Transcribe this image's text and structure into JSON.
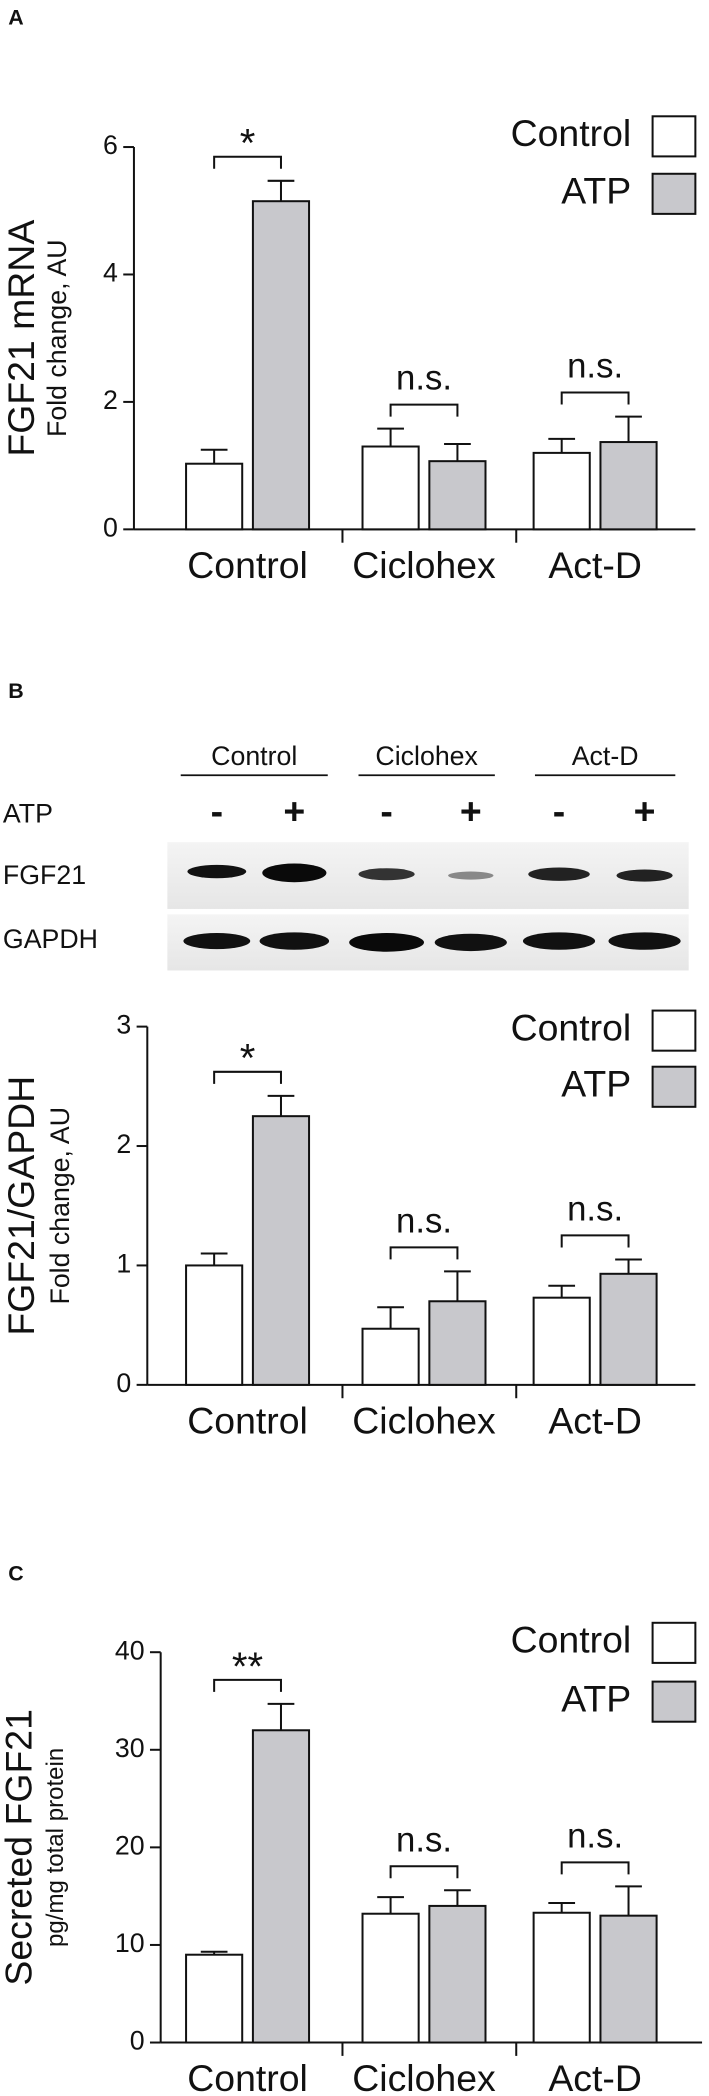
{
  "chart_data": [
    {
      "type": "bar",
      "panel_label": "A",
      "ylabel": "FGF21 mRNA",
      "ylabel_sub": "Fold change, AU",
      "categories": [
        "Control",
        "Ciclohex",
        "Act-D"
      ],
      "series": [
        {
          "name": "Control",
          "color": "#ffffff",
          "values": [
            1.03,
            1.3,
            1.2
          ],
          "errors": [
            0.22,
            0.28,
            0.22
          ]
        },
        {
          "name": "ATP",
          "color": "#c8c8cc",
          "values": [
            5.15,
            1.07,
            1.37
          ],
          "errors": [
            0.32,
            0.27,
            0.4
          ]
        }
      ],
      "annotations": [
        "*",
        "n.s.",
        "n.s."
      ],
      "ylim": [
        0,
        6
      ],
      "yticks": [
        0,
        2,
        4,
        6
      ]
    },
    {
      "type": "bar",
      "ylabel": "FGF21/GAPDH",
      "ylabel_sub": "Fold change, AU",
      "categories": [
        "Control",
        "Ciclohex",
        "Act-D"
      ],
      "series": [
        {
          "name": "Control",
          "color": "#ffffff",
          "values": [
            1.0,
            0.47,
            0.73
          ],
          "errors": [
            0.1,
            0.18,
            0.1
          ]
        },
        {
          "name": "ATP",
          "color": "#c8c8cc",
          "values": [
            2.25,
            0.7,
            0.93
          ],
          "errors": [
            0.17,
            0.25,
            0.12
          ]
        }
      ],
      "annotations": [
        "*",
        "n.s.",
        "n.s."
      ],
      "ylim": [
        0,
        3
      ],
      "yticks": [
        0,
        1,
        2,
        3
      ]
    },
    {
      "type": "bar",
      "panel_label": "C",
      "ylabel": "Secreted FGF21",
      "ylabel_sub": "pg/mg total protein",
      "categories": [
        "Control",
        "Ciclohex",
        "Act-D"
      ],
      "series": [
        {
          "name": "Control",
          "color": "#ffffff",
          "values": [
            9.0,
            13.2,
            13.3
          ],
          "errors": [
            0.3,
            1.7,
            1.0
          ]
        },
        {
          "name": "ATP",
          "color": "#c8c8cc",
          "values": [
            32.0,
            14.0,
            13.0
          ],
          "errors": [
            2.7,
            1.6,
            3.0
          ]
        }
      ],
      "annotations": [
        "**",
        "n.s.",
        "n.s."
      ],
      "ylim": [
        0,
        40
      ],
      "yticks": [
        0,
        10,
        20,
        30,
        40
      ]
    }
  ],
  "blot": {
    "panel_label": "B",
    "groups": [
      "Control",
      "Ciclohex",
      "Act-D"
    ],
    "treatment": "ATP",
    "signs": [
      "-",
      "+",
      "-",
      "+",
      "-",
      "+"
    ],
    "rows": [
      "FGF21",
      "GAPDH"
    ]
  }
}
